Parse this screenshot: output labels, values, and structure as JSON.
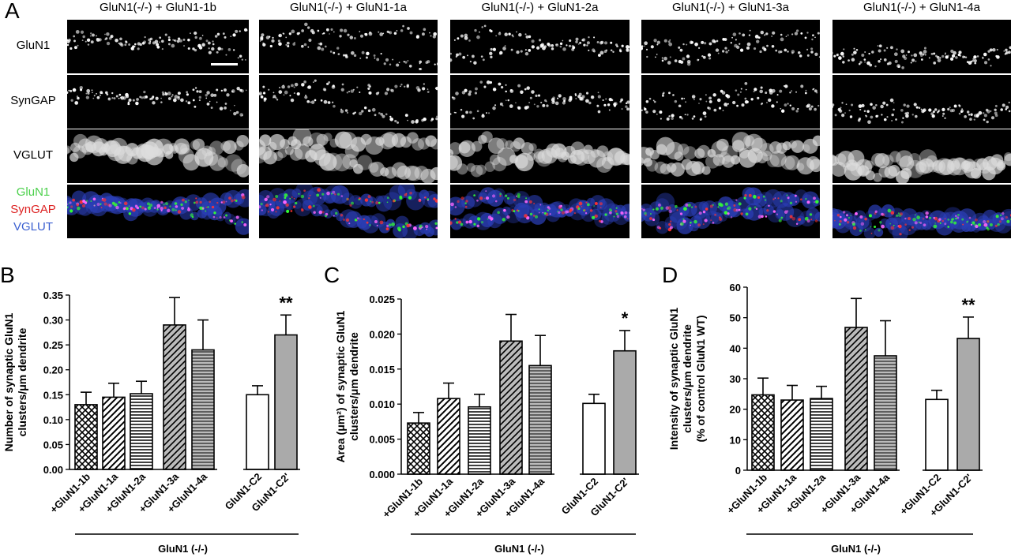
{
  "panelA": {
    "letter": "A",
    "columns": [
      "GluN1(-/-) + GluN1-1b",
      "GluN1(-/-) + GluN1-1a",
      "GluN1(-/-) + GluN1-2a",
      "GluN1(-/-) + GluN1-3a",
      "GluN1(-/-) + GluN1-4a"
    ],
    "rows": [
      "GluN1",
      "SynGAP",
      "VGLUT"
    ],
    "merge_labels": [
      {
        "text": "GluN1",
        "color": "#4bd04b"
      },
      {
        "text": "SynGAP",
        "color": "#d22"
      },
      {
        "text": "VGLUT",
        "color": "#3a5fd0"
      }
    ]
  },
  "chart_data": [
    {
      "letter": "B",
      "type": "bar",
      "ylabel": "Number of synaptic GluN1 clusters/μm dendrite",
      "ylim": [
        0,
        0.35
      ],
      "yticks": [
        "0.00",
        "0.05",
        "0.10",
        "0.15",
        "0.20",
        "0.25",
        "0.30",
        "0.35"
      ],
      "categories": [
        "+GluN1-1b",
        "+GluN1-1a",
        "+GluN1-2a",
        "+GluN1-3a",
        "+GluN1-4a",
        "GluN1-C2",
        "GluN1-C2'"
      ],
      "values": [
        0.13,
        0.145,
        0.152,
        0.29,
        0.24,
        0.15,
        0.27
      ],
      "errors": [
        0.025,
        0.028,
        0.025,
        0.055,
        0.06,
        0.018,
        0.04
      ],
      "patterns": [
        "crosshatch",
        "diag",
        "horiz",
        "diag-gray",
        "horiz-gray",
        "white",
        "gray"
      ],
      "significance": [
        "",
        "",
        "",
        "",
        "",
        "",
        "**"
      ],
      "group_label": "GluN1 (-/-)"
    },
    {
      "letter": "C",
      "type": "bar",
      "ylabel": "Area (μm²) of synaptic GluN1 clusters/μm dendrite",
      "ylim": [
        0,
        0.025
      ],
      "yticks": [
        "0.000",
        "0.005",
        "0.010",
        "0.015",
        "0.020",
        "0.025"
      ],
      "categories": [
        "+GluN1-1b",
        "+GluN1-1a",
        "+GluN1-2a",
        "+GluN1-3a",
        "+GluN1-4a",
        "GluN1-C2",
        "GluN1-C2'"
      ],
      "values": [
        0.0073,
        0.0108,
        0.0096,
        0.019,
        0.0155,
        0.0101,
        0.0176
      ],
      "errors": [
        0.0015,
        0.0022,
        0.0018,
        0.0038,
        0.0043,
        0.0013,
        0.0029
      ],
      "patterns": [
        "crosshatch",
        "diag",
        "horiz",
        "diag-gray",
        "horiz-gray",
        "white",
        "gray"
      ],
      "significance": [
        "",
        "",
        "",
        "",
        "",
        "",
        "*"
      ],
      "group_label": "GluN1 (-/-)"
    },
    {
      "letter": "D",
      "type": "bar",
      "ylabel": "Intensity of synaptic GluN1 clusters/μm dendrite (% of control GluN1 WT)",
      "ylim": [
        0,
        60
      ],
      "yticks": [
        "0",
        "10",
        "20",
        "30",
        "40",
        "50",
        "60"
      ],
      "categories": [
        "+GluN1-1b",
        "+GluN1-1a",
        "+GluN1-2a",
        "+GluN1-3a",
        "+GluN1-4a",
        "+GluN1-C2",
        "+GluN1-C2'"
      ],
      "values": [
        24.7,
        23.0,
        23.5,
        46.8,
        37.5,
        23.2,
        43.2
      ],
      "errors": [
        5.5,
        4.8,
        4.0,
        9.5,
        11.5,
        3.0,
        7.0
      ],
      "patterns": [
        "crosshatch",
        "diag",
        "horiz",
        "diag-gray",
        "horiz-gray",
        "white",
        "gray"
      ],
      "significance": [
        "",
        "",
        "",
        "",
        "",
        "",
        "**"
      ],
      "group_label": "GluN1 (-/-)"
    }
  ]
}
